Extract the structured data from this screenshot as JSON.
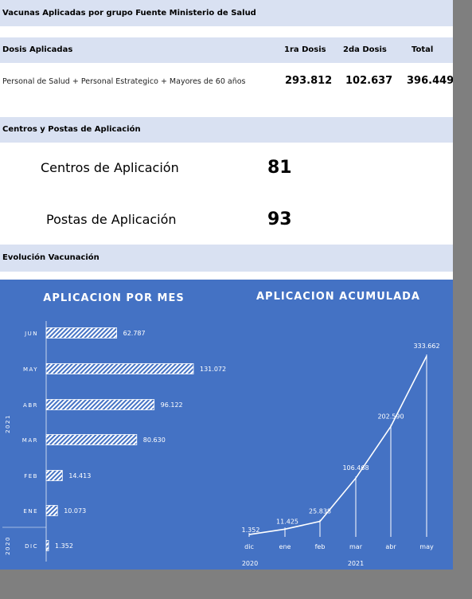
{
  "header": {
    "title": "Vacunas Aplicadas por grupo Fuente Ministerio de Salud"
  },
  "doses": {
    "section_label": "Dosis Aplicadas",
    "col_first": "1ra Dosis",
    "col_second": "2da Dosis",
    "col_total": "Total",
    "row": {
      "label": "Personal de Salud + Personal Estrategico + Mayores de 60 años",
      "first": "293.812",
      "second": "102.637",
      "total": "396.449"
    }
  },
  "centers": {
    "section_label": "Centros y Postas de Aplicación",
    "centros_label": "Centros de Aplicación",
    "centros_value": "81",
    "postas_label": "Postas de Aplicación",
    "postas_value": "93"
  },
  "evolution": {
    "section_label": "Evolución Vacunación"
  },
  "chart_data": [
    {
      "type": "bar",
      "orientation": "horizontal",
      "title": "APLICACION POR MES",
      "categories": [
        "JUN",
        "MAY",
        "ABR",
        "MAR",
        "FEB",
        "ENE",
        "DIC"
      ],
      "values": [
        62787,
        131072,
        96122,
        80630,
        14413,
        10073,
        1352
      ],
      "data_labels": [
        "62.787",
        "131.072",
        "96.122",
        "80.630",
        "14.413",
        "10.073",
        "1.352"
      ],
      "year_groups": [
        {
          "label": "2021",
          "categories": [
            "JUN",
            "MAY",
            "ABR",
            "MAR",
            "FEB",
            "ENE"
          ]
        },
        {
          "label": "2020",
          "categories": [
            "DIC"
          ]
        }
      ],
      "color": "#ffffff",
      "pattern": "diagonal-hatch"
    },
    {
      "type": "line",
      "title": "APLICACION  ACUMULADA",
      "x": [
        "dic",
        "ene",
        "feb",
        "mar",
        "abr",
        "may"
      ],
      "values": [
        1352,
        11425,
        25838,
        106468,
        202590,
        333662
      ],
      "data_labels": [
        "1.352",
        "11.425",
        "25.838",
        "106.468",
        "202.590",
        "333.662"
      ],
      "year_groups": [
        {
          "label": "2020",
          "categories": [
            "dic"
          ]
        },
        {
          "label": "2021",
          "categories": [
            "ene",
            "feb",
            "mar",
            "abr",
            "may"
          ]
        }
      ],
      "color": "#ffffff"
    }
  ]
}
